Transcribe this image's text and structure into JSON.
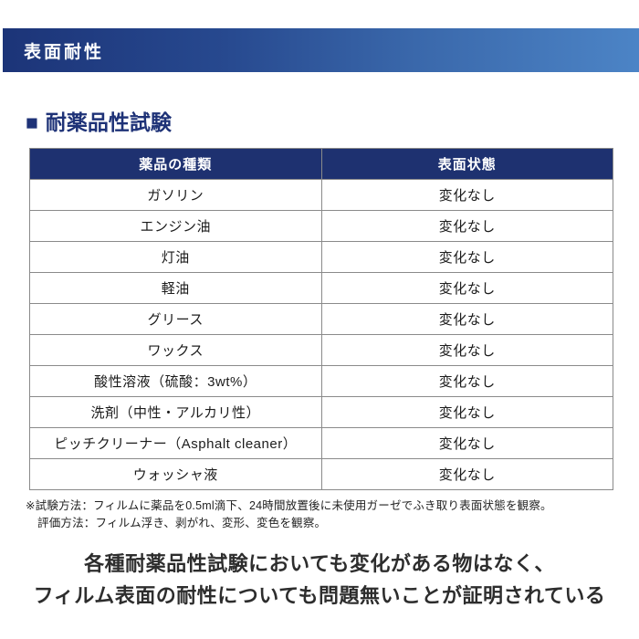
{
  "banner": {
    "title": "表面耐性",
    "gradient_left_color": "#1c3478",
    "gradient_right_color": "#4c84c6"
  },
  "section": {
    "bullet": "■",
    "title": "耐薬品性試験",
    "color": "#1e3277"
  },
  "table": {
    "header_bg_color": "#1e3170",
    "header": {
      "chemical": "薬品の種類",
      "surface": "表面状態"
    },
    "rows": [
      {
        "chemical": "ガソリン",
        "surface": "変化なし"
      },
      {
        "chemical": "エンジン油",
        "surface": "変化なし"
      },
      {
        "chemical": "灯油",
        "surface": "変化なし"
      },
      {
        "chemical": "軽油",
        "surface": "変化なし"
      },
      {
        "chemical": "グリース",
        "surface": "変化なし"
      },
      {
        "chemical": "ワックス",
        "surface": "変化なし"
      },
      {
        "chemical": "酸性溶液（硫酸：3wt%）",
        "surface": "変化なし"
      },
      {
        "chemical": "洗剤（中性・アルカリ性）",
        "surface": "変化なし"
      },
      {
        "chemical": "ピッチクリーナー（Asphalt cleaner）",
        "surface": "変化なし"
      },
      {
        "chemical": "ウォッシャ液",
        "surface": "変化なし"
      }
    ]
  },
  "footnotes": {
    "line1": "※試験方法：フィルムに薬品を0.5ml滴下、24時間放置後に未使用ガーゼでふき取り表面状態を観察。",
    "line2": "評価方法：フィルム浮き、剥がれ、変形、変色を観察。"
  },
  "summary": {
    "line1": "各種耐薬品性試験においても変化がある物はなく、",
    "line2": "フィルム表面の耐性についても問題無いことが証明されている"
  }
}
